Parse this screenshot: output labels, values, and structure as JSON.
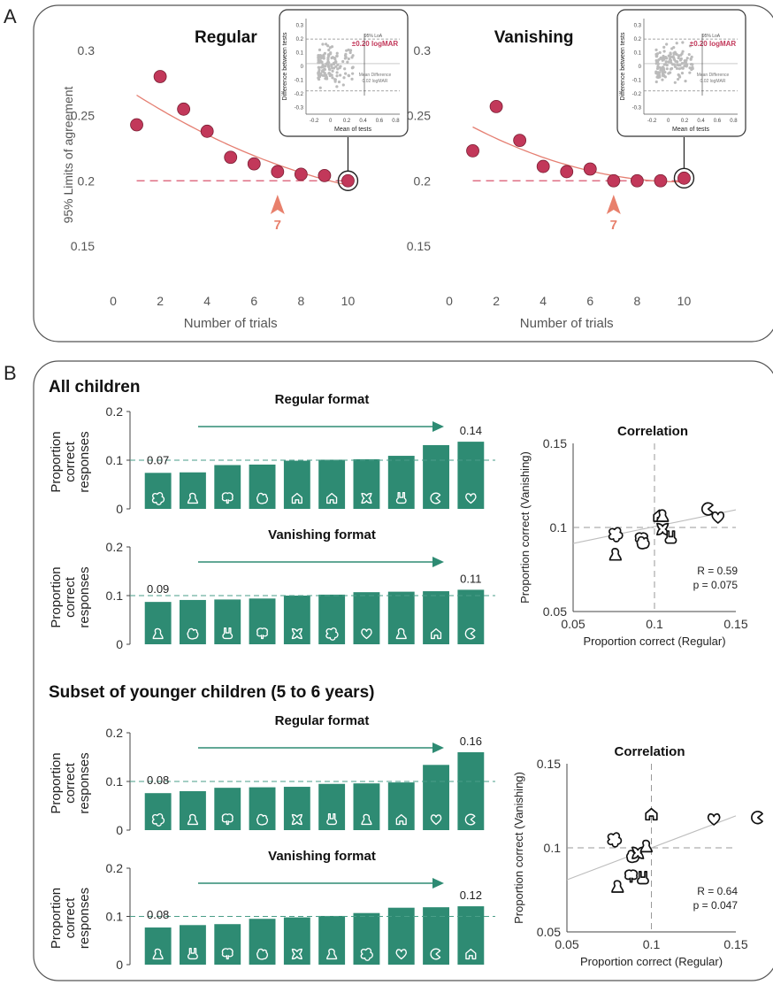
{
  "panel_labels": {
    "a": "A",
    "b": "B"
  },
  "colors": {
    "marker": "#c2385a",
    "fit_line": "#e57f72",
    "ref_line": "#d9566e",
    "arrow": "#e8806c",
    "bar": "#2e8b73",
    "trend_arrow": "#2e8b73",
    "axis_text": "#555555"
  },
  "panel_a": {
    "ylabel": "95% Limits of agreement",
    "plots": [
      {
        "title": "Regular",
        "xlabel": "Number of trials",
        "arrow_label": "7",
        "inset": {
          "xlabel": "Mean of tests",
          "ylabel": "Difference between tests",
          "loa_text": "95% LoA",
          "value_text": "±0.20 logMAR",
          "mean_text_1": "Mean Difference",
          "mean_text_2": "0.02 logMAR",
          "xticks": [
            "-0.2",
            "0",
            "0.2",
            "0.4",
            "0.6",
            "0.8"
          ],
          "yticks": [
            "0.3",
            "0.2",
            "0.1",
            "0",
            "-0.1",
            "-0.2",
            "-0.3"
          ]
        }
      },
      {
        "title": "Vanishing",
        "xlabel": "Number of trials",
        "arrow_label": "7",
        "inset": {
          "xlabel": "Mean of tests",
          "ylabel": "Difference between tests",
          "loa_text": "95% LoA",
          "value_text": "±0.20 logMAR",
          "mean_text_1": "Mean Difference",
          "mean_text_2": "0.02 logMAR",
          "xticks": [
            "-0.2",
            "0",
            "0.2",
            "0.4",
            "0.6",
            "0.8"
          ],
          "yticks": [
            "0.3",
            "0.2",
            "0.1",
            "0",
            "-0.1",
            "-0.2",
            "-0.3"
          ]
        }
      }
    ]
  },
  "panel_b": {
    "group_titles": [
      "All children",
      "Subset of younger children (5 to 6 years)"
    ],
    "bar_ylabel_lines": [
      "Proportion",
      "correct",
      "responses"
    ],
    "corr_title": "Correlation",
    "corr_xlabel": "Proportion correct (Regular)",
    "corr_ylabel": "Proportion correct (Vanishing)",
    "corr_stats": [
      {
        "r": "R = 0.59",
        "p": "p = 0.075"
      },
      {
        "r": "R = 0.64",
        "p": "p = 0.047"
      }
    ],
    "bar_titles": [
      "Regular format",
      "Vanishing format",
      "Regular format",
      "Vanishing format"
    ],
    "first_labels": [
      "0.07",
      "0.09",
      "0.08",
      "0.08"
    ],
    "last_labels": [
      "0.14",
      "0.11",
      "0.16",
      "0.12"
    ]
  },
  "chart_data": [
    {
      "type": "scatter",
      "title": "Regular",
      "xlabel": "Number of trials",
      "ylabel": "95% Limits of agreement",
      "x": [
        1,
        2,
        3,
        4,
        5,
        6,
        7,
        8,
        9,
        10
      ],
      "y": [
        0.243,
        0.28,
        0.255,
        0.238,
        0.218,
        0.213,
        0.207,
        0.205,
        0.204,
        0.2
      ],
      "reference_line": 0.2,
      "annotation_x": 7,
      "xlim": [
        0,
        11
      ],
      "ylim": [
        0.12,
        0.315
      ],
      "xticks": [
        0,
        2,
        4,
        6,
        8,
        10
      ],
      "yticks": [
        0.15,
        0.2,
        0.25,
        0.3
      ]
    },
    {
      "type": "scatter",
      "title": "Vanishing",
      "xlabel": "Number of trials",
      "x": [
        1,
        2,
        3,
        4,
        5,
        6,
        7,
        8,
        9,
        10
      ],
      "y": [
        0.223,
        0.257,
        0.231,
        0.211,
        0.207,
        0.209,
        0.2,
        0.2,
        0.2,
        0.202
      ],
      "reference_line": 0.2,
      "annotation_x": 7,
      "xlim": [
        0,
        11
      ],
      "ylim": [
        0.12,
        0.315
      ],
      "xticks": [
        0,
        2,
        4,
        6,
        8,
        10
      ],
      "yticks": [
        0.15,
        0.2,
        0.25,
        0.3
      ]
    },
    {
      "type": "bar",
      "title": "Regular format",
      "group": "All children",
      "categories": [
        "flower",
        "bell",
        "tree",
        "apple",
        "house",
        "house",
        "butterfly",
        "rabbit",
        "pacman",
        "heart"
      ],
      "values": [
        0.074,
        0.075,
        0.09,
        0.091,
        0.099,
        0.101,
        0.102,
        0.109,
        0.131,
        0.138
      ],
      "chance": 0.1,
      "ylim": [
        0,
        0.2
      ],
      "yticks": [
        0,
        0.1,
        0.2
      ]
    },
    {
      "type": "bar",
      "title": "Vanishing format",
      "group": "All children",
      "categories": [
        "bell",
        "apple",
        "rabbit",
        "tree",
        "butterfly",
        "flower",
        "heart",
        "bell",
        "house",
        "pacman"
      ],
      "values": [
        0.087,
        0.091,
        0.092,
        0.094,
        0.1,
        0.102,
        0.107,
        0.108,
        0.109,
        0.112
      ],
      "chance": 0.1,
      "ylim": [
        0,
        0.2
      ],
      "yticks": [
        0,
        0.1,
        0.2
      ]
    },
    {
      "type": "scatter",
      "title": "Correlation",
      "group": "All children",
      "xlabel": "Proportion correct (Regular)",
      "ylabel": "Proportion correct (Vanishing)",
      "points": [
        {
          "symbol": "flower",
          "x": 0.076,
          "y": 0.096
        },
        {
          "symbol": "bell",
          "x": 0.076,
          "y": 0.084
        },
        {
          "symbol": "tree",
          "x": 0.092,
          "y": 0.093
        },
        {
          "symbol": "apple",
          "x": 0.093,
          "y": 0.091
        },
        {
          "symbol": "house",
          "x": 0.103,
          "y": 0.107
        },
        {
          "symbol": "bell",
          "x": 0.105,
          "y": 0.107
        },
        {
          "symbol": "butterfly",
          "x": 0.105,
          "y": 0.099
        },
        {
          "symbol": "rabbit",
          "x": 0.11,
          "y": 0.094
        },
        {
          "symbol": "pacman",
          "x": 0.133,
          "y": 0.111
        },
        {
          "symbol": "heart",
          "x": 0.139,
          "y": 0.106
        }
      ],
      "fit_line": [
        [
          0.05,
          0.0905
        ],
        [
          0.15,
          0.1105
        ]
      ],
      "xlim": [
        0.05,
        0.15
      ],
      "ylim": [
        0.05,
        0.15
      ],
      "xticks": [
        0.05,
        0.1,
        0.15
      ],
      "yticks": [
        0.05,
        0.1,
        0.15
      ],
      "R": 0.59,
      "p": 0.075
    },
    {
      "type": "bar",
      "title": "Regular format",
      "group": "Subset of younger children (5 to 6 years)",
      "categories": [
        "flower",
        "bell",
        "tree",
        "apple",
        "butterfly",
        "rabbit",
        "bell",
        "house",
        "heart",
        "pacman"
      ],
      "values": [
        0.076,
        0.08,
        0.087,
        0.088,
        0.089,
        0.095,
        0.096,
        0.098,
        0.134,
        0.16
      ],
      "chance": 0.1,
      "ylim": [
        0,
        0.2
      ],
      "yticks": [
        0,
        0.1,
        0.2
      ]
    },
    {
      "type": "bar",
      "title": "Vanishing format",
      "group": "Subset of younger children (5 to 6 years)",
      "categories": [
        "bell",
        "rabbit",
        "tree",
        "apple",
        "butterfly",
        "bell",
        "flower",
        "heart",
        "pacman",
        "house"
      ],
      "values": [
        0.077,
        0.082,
        0.084,
        0.095,
        0.098,
        0.101,
        0.107,
        0.118,
        0.119,
        0.121
      ],
      "chance": 0.1,
      "ylim": [
        0,
        0.2
      ],
      "yticks": [
        0,
        0.1,
        0.2
      ]
    },
    {
      "type": "scatter",
      "title": "Correlation",
      "group": "Subset of younger children (5 to 6 years)",
      "xlabel": "Proportion correct (Regular)",
      "ylabel": "Proportion correct (Vanishing)",
      "points": [
        {
          "symbol": "flower",
          "x": 0.078,
          "y": 0.105
        },
        {
          "symbol": "bell",
          "x": 0.08,
          "y": 0.077
        },
        {
          "symbol": "tree",
          "x": 0.088,
          "y": 0.083
        },
        {
          "symbol": "apple",
          "x": 0.089,
          "y": 0.095
        },
        {
          "symbol": "butterfly",
          "x": 0.092,
          "y": 0.097
        },
        {
          "symbol": "rabbit",
          "x": 0.095,
          "y": 0.082
        },
        {
          "symbol": "bell",
          "x": 0.097,
          "y": 0.101
        },
        {
          "symbol": "house",
          "x": 0.1,
          "y": 0.12
        },
        {
          "symbol": "heart",
          "x": 0.137,
          "y": 0.117
        },
        {
          "symbol": "pacman",
          "x": 0.163,
          "y": 0.118
        }
      ],
      "fit_line": [
        [
          0.05,
          0.081
        ],
        [
          0.15,
          0.119
        ]
      ],
      "xlim": [
        0.05,
        0.15
      ],
      "ylim": [
        0.05,
        0.15
      ],
      "xticks": [
        0.05,
        0.1,
        0.15
      ],
      "yticks": [
        0.05,
        0.1,
        0.15
      ],
      "R": 0.64,
      "p": 0.047
    }
  ]
}
